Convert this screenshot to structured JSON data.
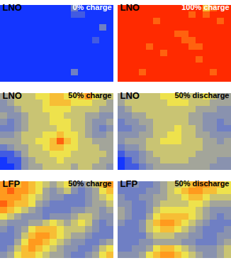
{
  "chart_data": [
    {
      "type": "heatmap",
      "title": "LNO",
      "subtitle": "0% charge",
      "zlim": [
        0,
        10
      ],
      "tick_labels": false,
      "cells": [
        [
          0,
          0,
          0,
          0,
          0,
          0,
          0,
          0,
          0,
          0,
          2,
          0,
          0,
          0,
          0,
          0
        ],
        [
          0,
          0,
          0,
          0,
          0,
          0,
          0,
          0,
          0,
          0,
          1,
          1,
          0,
          0,
          0,
          0
        ],
        [
          0,
          0,
          0,
          0,
          0,
          0,
          0,
          0,
          0,
          0,
          0,
          0,
          0,
          0,
          0,
          0
        ],
        [
          0,
          0,
          0,
          0,
          0,
          0,
          0,
          0,
          0,
          0,
          0,
          0,
          0,
          0,
          2,
          0
        ],
        [
          0,
          0,
          0,
          0,
          0,
          0,
          0,
          0,
          0,
          0,
          0,
          0,
          0,
          0,
          0,
          0
        ],
        [
          0,
          0,
          0,
          0,
          0,
          0,
          0,
          0,
          0,
          0,
          0,
          0,
          0,
          1,
          0,
          0
        ],
        [
          0,
          0,
          0,
          0,
          0,
          0,
          0,
          0,
          0,
          0,
          0,
          0,
          0,
          0,
          0,
          0
        ],
        [
          0,
          0,
          0,
          0,
          0,
          0,
          0,
          0,
          0,
          0,
          0,
          0,
          0,
          0,
          0,
          0
        ],
        [
          0,
          0,
          0,
          0,
          0,
          0,
          0,
          0,
          0,
          0,
          0,
          0,
          0,
          0,
          0,
          0
        ],
        [
          0,
          0,
          0,
          0,
          0,
          0,
          0,
          0,
          0,
          0,
          0,
          0,
          0,
          0,
          0,
          0
        ],
        [
          0,
          0,
          0,
          0,
          0,
          0,
          0,
          0,
          0,
          0,
          2,
          0,
          0,
          0,
          0,
          0
        ],
        [
          0,
          0,
          0,
          0,
          0,
          0,
          0,
          0,
          0,
          0,
          0,
          0,
          0,
          0,
          0,
          0
        ]
      ]
    },
    {
      "type": "heatmap",
      "title": "LNO",
      "subtitle": "100% charge",
      "zlim": [
        0,
        10
      ],
      "tick_labels": false,
      "cells": [
        [
          10,
          10,
          10,
          10,
          10,
          10,
          10,
          10,
          10,
          10,
          10,
          10,
          7,
          9,
          10,
          10
        ],
        [
          10,
          10,
          10,
          10,
          10,
          10,
          10,
          10,
          10,
          10,
          9,
          10,
          9,
          10,
          10,
          10
        ],
        [
          10,
          10,
          10,
          10,
          10,
          9,
          10,
          10,
          10,
          10,
          10,
          10,
          10,
          10,
          9,
          10
        ],
        [
          10,
          10,
          10,
          10,
          10,
          10,
          10,
          10,
          10,
          10,
          10,
          10,
          10,
          10,
          10,
          10
        ],
        [
          10,
          10,
          10,
          10,
          10,
          10,
          10,
          10,
          9,
          9,
          10,
          10,
          10,
          10,
          10,
          10
        ],
        [
          10,
          10,
          10,
          10,
          10,
          10,
          10,
          10,
          10,
          9,
          9,
          10,
          10,
          10,
          10,
          10
        ],
        [
          10,
          10,
          10,
          10,
          9,
          10,
          10,
          10,
          10,
          10,
          9,
          9,
          10,
          10,
          10,
          10
        ],
        [
          10,
          10,
          10,
          10,
          10,
          10,
          9,
          10,
          10,
          10,
          10,
          10,
          10,
          10,
          10,
          10
        ],
        [
          10,
          10,
          10,
          10,
          10,
          10,
          10,
          10,
          10,
          10,
          10,
          9,
          10,
          10,
          10,
          10
        ],
        [
          10,
          10,
          10,
          10,
          10,
          10,
          10,
          10,
          10,
          10,
          10,
          10,
          10,
          10,
          10,
          10
        ],
        [
          10,
          10,
          10,
          9,
          10,
          10,
          10,
          10,
          10,
          10,
          10,
          10,
          10,
          9,
          10,
          10
        ],
        [
          10,
          10,
          10,
          10,
          10,
          10,
          10,
          10,
          10,
          10,
          10,
          10,
          10,
          10,
          10,
          10
        ]
      ]
    },
    {
      "type": "heatmap",
      "title": "LNO",
      "subtitle": "50% charge",
      "zlim": [
        0,
        10
      ],
      "tick_labels": false,
      "cells": [
        [
          4,
          4,
          5,
          5,
          5,
          6,
          6,
          7,
          7,
          6,
          6,
          7,
          8,
          6,
          5,
          5
        ],
        [
          3,
          4,
          5,
          5,
          5,
          5,
          6,
          7,
          7,
          7,
          6,
          6,
          6,
          5,
          5,
          4
        ],
        [
          3,
          3,
          4,
          5,
          5,
          5,
          6,
          6,
          6,
          6,
          5,
          5,
          5,
          5,
          4,
          4
        ],
        [
          4,
          3,
          3,
          4,
          5,
          5,
          5,
          6,
          6,
          5,
          5,
          5,
          4,
          4,
          3,
          3
        ],
        [
          3,
          2,
          3,
          4,
          5,
          5,
          5,
          6,
          6,
          6,
          5,
          5,
          4,
          3,
          3,
          4
        ],
        [
          2,
          2,
          3,
          4,
          5,
          5,
          5,
          5,
          6,
          6,
          5,
          5,
          4,
          3,
          2,
          3
        ],
        [
          3,
          3,
          4,
          5,
          5,
          5,
          6,
          6,
          7,
          6,
          6,
          5,
          4,
          3,
          3,
          4
        ],
        [
          4,
          4,
          4,
          5,
          5,
          6,
          6,
          7,
          9,
          7,
          6,
          5,
          5,
          4,
          4,
          4
        ],
        [
          2,
          3,
          4,
          4,
          5,
          5,
          6,
          7,
          7,
          6,
          6,
          5,
          5,
          5,
          4,
          4
        ],
        [
          1,
          1,
          2,
          4,
          5,
          5,
          5,
          6,
          6,
          6,
          5,
          5,
          5,
          5,
          5,
          4
        ],
        [
          0,
          1,
          1,
          3,
          4,
          5,
          5,
          5,
          6,
          5,
          5,
          5,
          5,
          5,
          4,
          4
        ],
        [
          0,
          0,
          1,
          3,
          4,
          4,
          5,
          5,
          5,
          5,
          4,
          5,
          5,
          4,
          4,
          3
        ]
      ]
    },
    {
      "type": "heatmap",
      "title": "LNO",
      "subtitle": "50% discharge",
      "zlim": [
        0,
        10
      ],
      "tick_labels": false,
      "cells": [
        [
          4,
          4,
          5,
          5,
          5,
          5,
          6,
          6,
          6,
          5,
          5,
          5,
          6,
          5,
          4,
          4
        ],
        [
          4,
          5,
          5,
          5,
          5,
          5,
          5,
          6,
          6,
          6,
          5,
          5,
          5,
          4,
          4,
          4
        ],
        [
          3,
          4,
          5,
          5,
          5,
          5,
          5,
          5,
          5,
          5,
          5,
          4,
          4,
          4,
          3,
          3
        ],
        [
          3,
          3,
          4,
          4,
          5,
          5,
          5,
          5,
          5,
          5,
          4,
          4,
          3,
          3,
          3,
          3
        ],
        [
          2,
          3,
          3,
          4,
          4,
          5,
          5,
          5,
          5,
          5,
          4,
          4,
          3,
          3,
          2,
          3
        ],
        [
          2,
          2,
          3,
          3,
          4,
          5,
          5,
          5,
          6,
          5,
          5,
          4,
          3,
          3,
          2,
          2
        ],
        [
          3,
          3,
          3,
          4,
          4,
          5,
          5,
          6,
          6,
          5,
          5,
          4,
          4,
          3,
          3,
          3
        ],
        [
          3,
          4,
          4,
          4,
          5,
          5,
          6,
          6,
          6,
          5,
          5,
          5,
          4,
          4,
          3,
          4
        ],
        [
          2,
          3,
          3,
          4,
          5,
          5,
          5,
          5,
          5,
          5,
          5,
          5,
          4,
          4,
          4,
          4
        ],
        [
          1,
          2,
          2,
          3,
          4,
          5,
          5,
          5,
          5,
          5,
          5,
          4,
          4,
          4,
          4,
          4
        ],
        [
          0,
          1,
          2,
          3,
          4,
          4,
          5,
          5,
          5,
          5,
          4,
          4,
          4,
          4,
          3,
          3
        ],
        [
          0,
          1,
          1,
          2,
          3,
          4,
          4,
          4,
          4,
          4,
          4,
          4,
          4,
          3,
          3,
          3
        ]
      ]
    },
    {
      "type": "heatmap",
      "title": "LFP",
      "subtitle": "50% charge",
      "zlim": [
        0,
        10
      ],
      "tick_labels": false,
      "cells": [
        [
          8,
          8,
          7,
          8,
          7,
          6,
          5,
          4,
          5,
          6,
          4,
          3,
          4,
          5,
          7,
          8
        ],
        [
          8,
          9,
          8,
          8,
          7,
          6,
          4,
          3,
          4,
          5,
          3,
          2,
          3,
          4,
          6,
          7
        ],
        [
          8,
          8,
          8,
          7,
          6,
          5,
          4,
          3,
          3,
          2,
          2,
          2,
          3,
          4,
          5,
          6
        ],
        [
          9,
          8,
          7,
          7,
          6,
          4,
          3,
          2,
          2,
          2,
          2,
          2,
          3,
          4,
          4,
          5
        ],
        [
          8,
          7,
          6,
          5,
          4,
          3,
          2,
          2,
          2,
          2,
          3,
          3,
          4,
          4,
          3,
          4
        ],
        [
          6,
          5,
          4,
          3,
          3,
          3,
          2,
          3,
          3,
          3,
          4,
          5,
          5,
          4,
          3,
          3
        ],
        [
          4,
          3,
          3,
          3,
          4,
          4,
          5,
          6,
          5,
          4,
          5,
          6,
          5,
          3,
          2,
          3
        ],
        [
          3,
          2,
          3,
          4,
          6,
          7,
          7,
          7,
          6,
          5,
          5,
          5,
          4,
          3,
          2,
          2
        ],
        [
          2,
          2,
          3,
          5,
          7,
          8,
          8,
          7,
          6,
          5,
          4,
          4,
          3,
          2,
          2,
          2
        ],
        [
          2,
          2,
          4,
          6,
          8,
          8,
          7,
          6,
          5,
          4,
          3,
          3,
          2,
          2,
          3,
          4
        ],
        [
          2,
          3,
          5,
          7,
          8,
          7,
          6,
          5,
          4,
          3,
          3,
          2,
          2,
          3,
          5,
          6
        ],
        [
          3,
          4,
          6,
          7,
          7,
          6,
          5,
          4,
          4,
          3,
          2,
          2,
          3,
          4,
          6,
          7
        ]
      ]
    },
    {
      "type": "heatmap",
      "title": "LFP",
      "subtitle": "50% discharge",
      "zlim": [
        0,
        10
      ],
      "tick_labels": false,
      "cells": [
        [
          2,
          2,
          3,
          2,
          2,
          3,
          4,
          5,
          5,
          6,
          7,
          8,
          8,
          7,
          7,
          6
        ],
        [
          2,
          2,
          2,
          2,
          3,
          3,
          4,
          5,
          6,
          7,
          8,
          8,
          7,
          7,
          6,
          6
        ],
        [
          3,
          2,
          2,
          3,
          3,
          4,
          4,
          5,
          5,
          6,
          7,
          7,
          6,
          5,
          5,
          5
        ],
        [
          3,
          3,
          2,
          2,
          3,
          4,
          5,
          5,
          5,
          5,
          6,
          6,
          5,
          4,
          4,
          4
        ],
        [
          4,
          3,
          2,
          2,
          3,
          5,
          6,
          6,
          6,
          6,
          6,
          5,
          4,
          3,
          3,
          3
        ],
        [
          4,
          3,
          2,
          2,
          4,
          6,
          7,
          7,
          7,
          7,
          6,
          5,
          4,
          3,
          2,
          3
        ],
        [
          3,
          2,
          2,
          3,
          5,
          7,
          8,
          8,
          7,
          6,
          5,
          4,
          3,
          2,
          2,
          2
        ],
        [
          2,
          2,
          2,
          3,
          5,
          6,
          7,
          7,
          6,
          5,
          4,
          3,
          2,
          2,
          2,
          3
        ],
        [
          2,
          2,
          2,
          2,
          4,
          5,
          5,
          5,
          4,
          4,
          3,
          3,
          2,
          2,
          3,
          3
        ],
        [
          2,
          2,
          2,
          3,
          3,
          4,
          4,
          4,
          4,
          3,
          3,
          2,
          2,
          2,
          3,
          4
        ],
        [
          2,
          2,
          3,
          3,
          4,
          6,
          7,
          7,
          6,
          5,
          4,
          3,
          3,
          3,
          4,
          5
        ],
        [
          3,
          3,
          3,
          4,
          6,
          7,
          8,
          8,
          7,
          6,
          5,
          4,
          3,
          3,
          4,
          5
        ]
      ]
    }
  ]
}
